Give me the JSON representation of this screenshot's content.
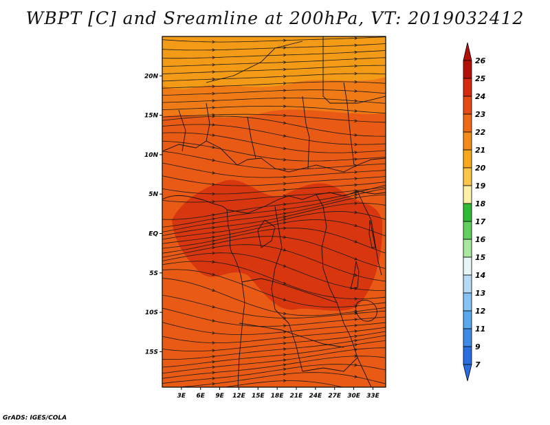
{
  "title": "WBPT [C] and Sreamline at 200hPa, VT: 2019032412",
  "credit": "GrADS: IGES/COLA",
  "map": {
    "lat_labels": [
      "20N",
      "15N",
      "10N",
      "5N",
      "EQ",
      "5S",
      "10S",
      "15S"
    ],
    "lat_values": [
      20,
      15,
      10,
      5,
      0,
      -5,
      -10,
      -15
    ],
    "lon_labels": [
      "3E",
      "6E",
      "9E",
      "12E",
      "15E",
      "18E",
      "21E",
      "24E",
      "27E",
      "30E",
      "33E"
    ],
    "lon_values": [
      3,
      6,
      9,
      12,
      15,
      18,
      21,
      24,
      27,
      30,
      33
    ],
    "lon_range": [
      0,
      35
    ],
    "lat_range": [
      -19.5,
      25
    ],
    "fill_color": "#e95a14",
    "north_color": "#f39b17",
    "transition_color": "#f07b16",
    "core_color": "#d8360e",
    "line_color": "#1a1a1a"
  },
  "colorbar": {
    "labels": [
      "26",
      "25",
      "24",
      "23",
      "22",
      "21",
      "20",
      "19",
      "18",
      "17",
      "16",
      "15",
      "14",
      "13",
      "12",
      "11",
      "9",
      "7"
    ],
    "colors": [
      "#b4100a",
      "#d52a10",
      "#e64a13",
      "#f06a16",
      "#f58c1a",
      "#faa81e",
      "#fbc64a",
      "#fdf1a8",
      "#2fba38",
      "#62d05f",
      "#a9e6a0",
      "#e4f6f6",
      "#b5dbf7",
      "#86c4f4",
      "#5aa9ef",
      "#3d8be6",
      "#2a6ee0"
    ]
  }
}
